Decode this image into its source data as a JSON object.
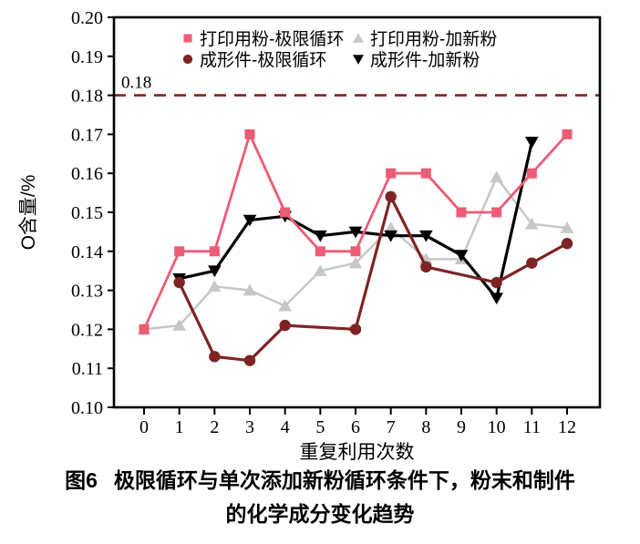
{
  "chart_data": {
    "type": "line",
    "title": "",
    "xlabel": "重复利用次数",
    "ylabel": "O含量/%",
    "xlim": [
      0,
      12
    ],
    "ylim": [
      0.1,
      0.2
    ],
    "xticks": [
      0,
      1,
      2,
      3,
      4,
      5,
      6,
      7,
      8,
      9,
      10,
      11,
      12
    ],
    "yticks": [
      0.1,
      0.11,
      0.12,
      0.13,
      0.14,
      0.15,
      0.16,
      0.17,
      0.18,
      0.19,
      0.2
    ],
    "grid": false,
    "legend_position": "top-inside",
    "legend_columns": 2,
    "frame": true,
    "threshold": {
      "value": 0.18,
      "label": "0.18",
      "color": "#7e2223",
      "style": "dashed"
    },
    "series": [
      {
        "id": "print-powder-limit-cycle",
        "name": "打印用粉-极限循环",
        "marker": "square",
        "color": "#ec5c74",
        "x": [
          0,
          1,
          2,
          3,
          4,
          5,
          6,
          7,
          8,
          9,
          10,
          11,
          12
        ],
        "y": [
          0.12,
          0.14,
          0.14,
          0.17,
          0.15,
          0.14,
          0.14,
          0.16,
          0.16,
          0.15,
          0.15,
          0.16,
          0.17
        ]
      },
      {
        "id": "print-powder-add-new",
        "name": "打印用粉-加新粉",
        "marker": "triangle-up",
        "color": "#c7c7c7",
        "x": [
          0,
          1,
          2,
          3,
          4,
          5,
          6,
          7,
          8,
          9,
          10,
          11,
          12
        ],
        "y": [
          0.12,
          0.121,
          0.131,
          0.13,
          0.126,
          0.135,
          0.137,
          0.146,
          0.138,
          0.138,
          0.159,
          0.147,
          0.146
        ]
      },
      {
        "id": "part-limit-cycle",
        "name": "成形件-极限循环",
        "marker": "circle",
        "color": "#7e2324",
        "x": [
          1,
          2,
          3,
          4,
          6,
          7,
          8,
          10,
          11,
          12
        ],
        "y": [
          0.132,
          0.113,
          0.112,
          0.121,
          0.12,
          0.154,
          0.136,
          0.132,
          0.137,
          0.142
        ]
      },
      {
        "id": "part-add-new",
        "name": "成形件-加新粉",
        "marker": "triangle-down",
        "color": "#000000",
        "x": [
          1,
          2,
          3,
          4,
          5,
          6,
          7,
          8,
          9,
          10,
          11
        ],
        "y": [
          0.133,
          0.135,
          0.148,
          0.149,
          0.144,
          0.145,
          0.144,
          0.144,
          0.139,
          0.128,
          0.168
        ]
      }
    ]
  },
  "caption": {
    "label": "图6",
    "line1": "极限循环与单次添加新粉循环条件下，粉末和制件",
    "line2": "的化学成分变化趋势"
  }
}
